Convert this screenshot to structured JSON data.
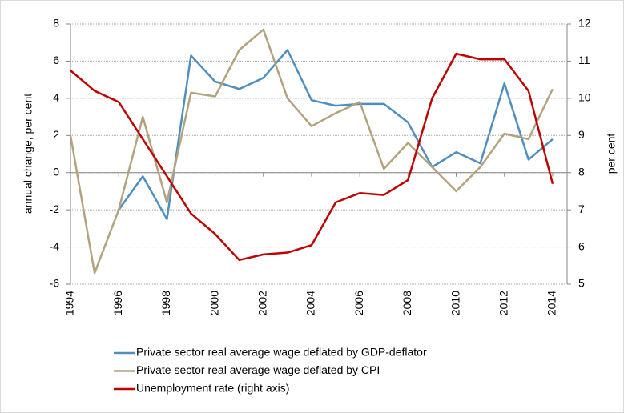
{
  "chart_data": {
    "type": "line",
    "y_label": "annual change, per cent",
    "y2_label": "per cent",
    "x": [
      1994,
      1995,
      1996,
      1997,
      1998,
      1999,
      2000,
      2001,
      2002,
      2003,
      2004,
      2005,
      2006,
      2007,
      2008,
      2009,
      2010,
      2011,
      2012,
      2013,
      2014
    ],
    "xlim": [
      1994,
      2014.6
    ],
    "xticks": [
      1994,
      1996,
      1998,
      2000,
      2002,
      2004,
      2006,
      2008,
      2010,
      2012,
      2014
    ],
    "ylim": [
      -6,
      8
    ],
    "yticks": [
      -6,
      -4,
      -2,
      0,
      2,
      4,
      6,
      8
    ],
    "y2lim": [
      5,
      12
    ],
    "y2ticks": [
      5,
      6,
      7,
      8,
      9,
      10,
      11,
      12
    ],
    "grid": true,
    "series": [
      {
        "name": "Private sector real average wage deflated by GDP-deflator",
        "color": "#4f8fc0",
        "values": [
          null,
          null,
          -2.0,
          -0.2,
          -2.5,
          6.3,
          4.9,
          4.5,
          5.1,
          6.6,
          3.9,
          3.6,
          3.7,
          3.7,
          2.7,
          0.3,
          1.1,
          0.5,
          4.8,
          0.7,
          1.8
        ]
      },
      {
        "name": "Private sector real average wage deflated by CPI",
        "color": "#b4a27c",
        "values": [
          2.0,
          -5.4,
          -2.0,
          3.0,
          -1.6,
          4.3,
          4.1,
          6.6,
          7.7,
          4.0,
          2.5,
          3.2,
          3.8,
          0.2,
          1.6,
          0.3,
          -1.0,
          0.3,
          2.1,
          1.8,
          4.5
        ]
      },
      {
        "name": "Unemployment rate (right axis)",
        "color": "#c00000",
        "axis": "y2",
        "values": [
          10.75,
          10.2,
          9.9,
          8.9,
          7.9,
          6.9,
          6.35,
          5.65,
          5.8,
          5.85,
          6.05,
          7.2,
          7.45,
          7.4,
          7.8,
          10.0,
          11.2,
          11.05,
          11.05,
          10.2,
          7.7
        ]
      }
    ]
  }
}
